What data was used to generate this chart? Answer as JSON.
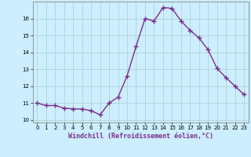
{
  "x": [
    0,
    1,
    2,
    3,
    4,
    5,
    6,
    7,
    8,
    9,
    10,
    11,
    12,
    13,
    14,
    15,
    16,
    17,
    18,
    19,
    20,
    21,
    22,
    23
  ],
  "y": [
    11.0,
    10.85,
    10.85,
    10.7,
    10.65,
    10.65,
    10.55,
    10.3,
    11.0,
    11.35,
    12.6,
    14.35,
    16.0,
    15.85,
    16.65,
    16.6,
    15.85,
    15.3,
    14.85,
    14.15,
    13.05,
    12.5,
    12.0,
    11.5
  ],
  "line_color": "#7b2d8b",
  "marker": "+",
  "marker_size": 4,
  "bg_color": "#cceeff",
  "grid_color": "#aacccc",
  "xlabel": "Windchill (Refroidissement éolien,°C)",
  "xlim": [
    -0.5,
    23.5
  ],
  "ylim": [
    9.85,
    17.0
  ],
  "yticks": [
    10,
    11,
    12,
    13,
    14,
    15,
    16
  ],
  "xticks": [
    0,
    1,
    2,
    3,
    4,
    5,
    6,
    7,
    8,
    9,
    10,
    11,
    12,
    13,
    14,
    15,
    16,
    17,
    18,
    19,
    20,
    21,
    22,
    23
  ],
  "tick_labelsize": 5.0,
  "xlabel_fontsize": 6.0,
  "line_width": 1.0,
  "marker_linewidth": 1.0
}
